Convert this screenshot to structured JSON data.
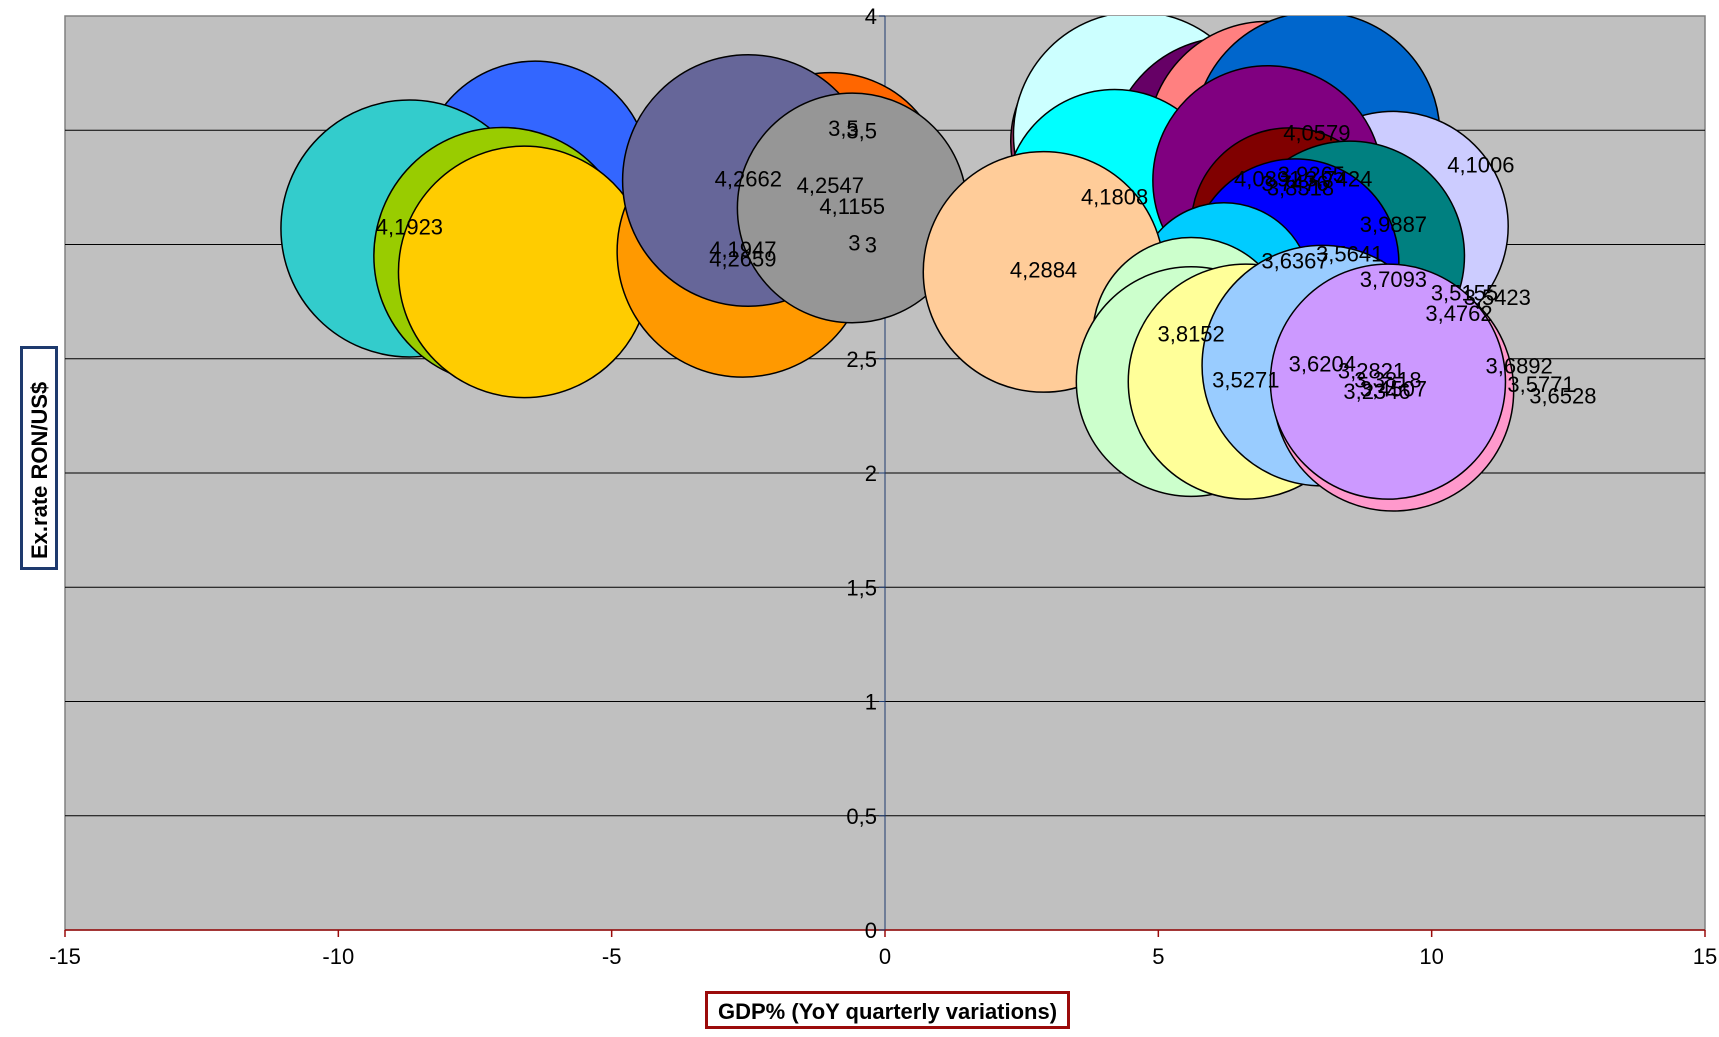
{
  "chart_data": {
    "type": "bubble",
    "xlabel": "GDP% (YoY quarterly variations)",
    "ylabel": "Ex.rate RON/US$",
    "xlim": [
      -15,
      15
    ],
    "ylim": [
      0,
      4
    ],
    "xticks": [
      "-15",
      "-10",
      "-5",
      "0",
      "5",
      "10",
      "15"
    ],
    "yticks": [
      "0",
      "0,5",
      "1",
      "1,5",
      "2",
      "2,5",
      "3",
      "3,5",
      "4"
    ],
    "grid": true,
    "points": [
      {
        "x": -6.4,
        "y": 3.3,
        "r_data": 2.1,
        "label": "",
        "color": "#3366ff"
      },
      {
        "x": -8.7,
        "y": 3.07,
        "r_data": 2.35,
        "label": "4,1923",
        "color": "#33cccc"
      },
      {
        "x": -7.0,
        "y": 2.95,
        "r_data": 2.35,
        "label": "",
        "color": "#99cc00"
      },
      {
        "x": -6.6,
        "y": 2.88,
        "r_data": 2.3,
        "label": "",
        "color": "#ffcc00"
      },
      {
        "x": -2.6,
        "y": 2.97,
        "r_data": 2.3,
        "label": "4,1947",
        "color": "#ff9900"
      },
      {
        "x": -1.0,
        "y": 3.25,
        "r_data": 2.1,
        "label": "4,2547",
        "color": "#ff6600"
      },
      {
        "x": -2.5,
        "y": 3.28,
        "r_data": 2.3,
        "label": "4,2662",
        "color": "#666699"
      },
      {
        "x": -2.6,
        "y": 2.93,
        "r_data": 0,
        "label": "4,2659",
        "color": "#ff9900"
      },
      {
        "x": -0.6,
        "y": 3.16,
        "r_data": 2.1,
        "label": "4,1155",
        "color": "#969696"
      },
      {
        "x": 4.3,
        "y": 3.45,
        "r_data": 2.0,
        "label": "",
        "color": "#993366"
      },
      {
        "x": 4.6,
        "y": 3.48,
        "r_data": 2.25,
        "label": "",
        "color": "#ccffff"
      },
      {
        "x": 6.3,
        "y": 3.38,
        "r_data": 2.2,
        "label": "",
        "color": "#660066"
      },
      {
        "x": 7.0,
        "y": 3.45,
        "r_data": 2.2,
        "label": "",
        "color": "#ff8080"
      },
      {
        "x": 7.9,
        "y": 3.48,
        "r_data": 2.25,
        "label": "4,0579",
        "color": "#0066cc"
      },
      {
        "x": 4.2,
        "y": 3.2,
        "r_data": 2.0,
        "label": "4,1808",
        "color": "#00ffff"
      },
      {
        "x": 9.3,
        "y": 3.08,
        "r_data": 2.1,
        "label": "3,9887",
        "color": "#ccccff"
      },
      {
        "x": 7.0,
        "y": 3.28,
        "r_data": 2.1,
        "label": "4,0891",
        "color": "#800080"
      },
      {
        "x": 7.4,
        "y": 3.08,
        "r_data": 1.8,
        "label": "",
        "color": "#800000"
      },
      {
        "x": 8.5,
        "y": 2.95,
        "r_data": 2.1,
        "label": "3,5641",
        "color": "#008080"
      },
      {
        "x": 7.5,
        "y": 2.92,
        "r_data": 1.9,
        "label": "3,6367",
        "color": "#0000ff"
      },
      {
        "x": 6.2,
        "y": 2.8,
        "r_data": 1.6,
        "label": "",
        "color": "#00ccff"
      },
      {
        "x": 2.9,
        "y": 2.88,
        "r_data": 2.2,
        "label": "4,2884",
        "color": "#ffcc99"
      },
      {
        "x": 5.6,
        "y": 2.6,
        "r_data": 1.8,
        "label": "3,8152",
        "color": "#ccffcc"
      },
      {
        "x": 5.6,
        "y": 2.4,
        "r_data": 2.1,
        "label": "",
        "color": "#ccffcc"
      },
      {
        "x": 6.6,
        "y": 2.4,
        "r_data": 2.15,
        "label": "3,5271",
        "color": "#ffff99"
      },
      {
        "x": 8.0,
        "y": 2.47,
        "r_data": 2.2,
        "label": "3,6204",
        "color": "#99ccff"
      },
      {
        "x": 9.3,
        "y": 2.36,
        "r_data": 2.2,
        "label": "3,4507",
        "color": "#ff99cc"
      },
      {
        "x": 9.2,
        "y": 2.4,
        "r_data": 2.15,
        "label": "3,3818",
        "color": "#cc99ff"
      }
    ],
    "labels": [
      {
        "text": "3,5",
        "x": -0.76,
        "y": 3.5
      },
      {
        "text": "3",
        "x": -0.56,
        "y": 3.0
      },
      {
        "text": "3,9265",
        "x": 7.8,
        "y": 3.3
      },
      {
        "text": "3,7424",
        "x": 8.3,
        "y": 3.28
      },
      {
        "text": "3,7476",
        "x": 7.5,
        "y": 3.26
      },
      {
        "text": "3,8318",
        "x": 7.6,
        "y": 3.24
      },
      {
        "text": "4,1006",
        "x": 10.9,
        "y": 3.34
      },
      {
        "text": "3,7093",
        "x": 9.3,
        "y": 2.84
      },
      {
        "text": "3,5155",
        "x": 10.6,
        "y": 2.78
      },
      {
        "text": "3,5423",
        "x": 11.2,
        "y": 2.76
      },
      {
        "text": "3,4762",
        "x": 10.5,
        "y": 2.69
      },
      {
        "text": "3,2821",
        "x": 8.9,
        "y": 2.44
      },
      {
        "text": "3,2346",
        "x": 9.0,
        "y": 2.35
      },
      {
        "text": "3,6892",
        "x": 11.6,
        "y": 2.46
      },
      {
        "text": "3,5771",
        "x": 12.0,
        "y": 2.38
      },
      {
        "text": "3,6528",
        "x": 12.4,
        "y": 2.33
      }
    ]
  }
}
